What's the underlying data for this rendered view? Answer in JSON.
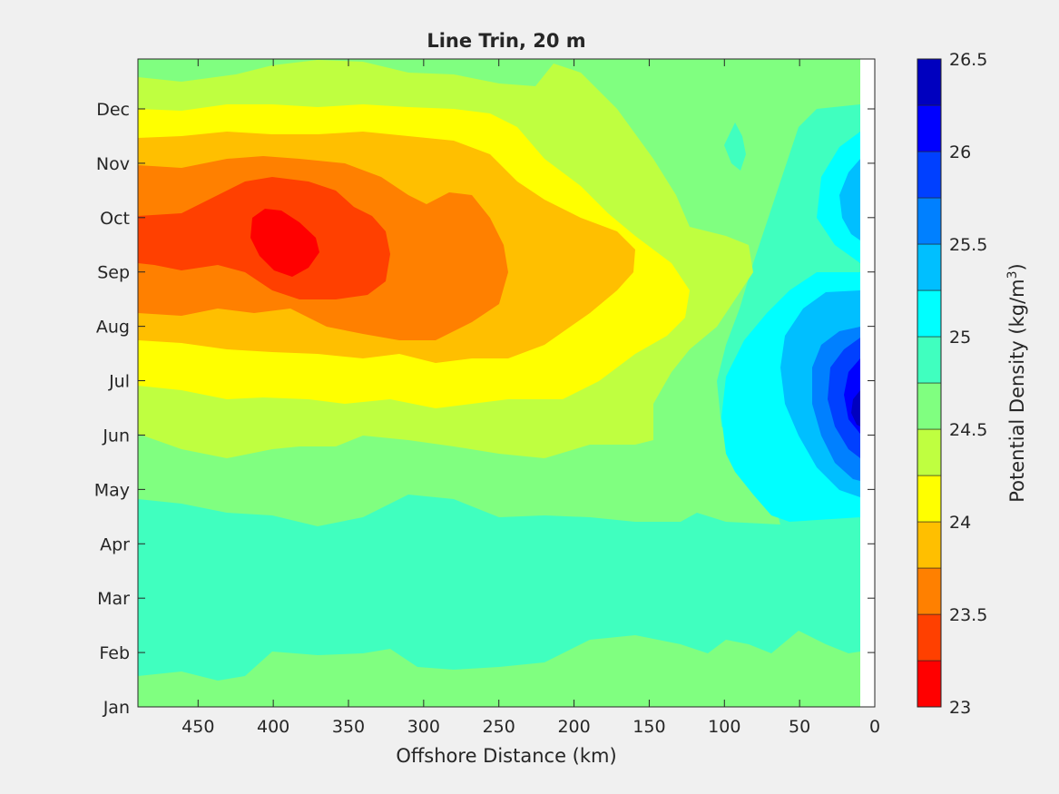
{
  "chart_data": {
    "type": "filled-contour",
    "title": "Line Trin, 20 m",
    "xlabel": "Offshore Distance (km)",
    "xlim": [
      490,
      0
    ],
    "x_reversed": true,
    "x_ticks": [
      450,
      400,
      350,
      300,
      250,
      200,
      150,
      100,
      50,
      0
    ],
    "y_ticks": [
      "Jan",
      "Feb",
      "Mar",
      "Apr",
      "May",
      "Jun",
      "Jul",
      "Aug",
      "Sep",
      "Oct",
      "Nov",
      "Dec"
    ],
    "colorbar": {
      "label_main": "Potential Density (kg/m",
      "label_sup": "3",
      "label_end": ")",
      "range": [
        23,
        26.5
      ],
      "ticks": [
        23,
        23.5,
        24,
        24.5,
        25,
        25.5,
        26,
        26.5
      ],
      "level_step": 0.25,
      "colors": [
        "#ff0000",
        "#ff4000",
        "#ff8000",
        "#ffbf00",
        "#ffff00",
        "#bfff40",
        "#80ff80",
        "#40ffbf",
        "#00ffff",
        "#00bfff",
        "#0080ff",
        "#0040ff",
        "#0000ff",
        "#0000bf"
      ]
    },
    "density_regions": [
      {
        "level": 23.0,
        "feature": "minimum near 395 km, mid-September to early October",
        "value": 23.1
      },
      {
        "level": 26.25,
        "feature": "maximum near coast, mid-June",
        "value": 26.3
      }
    ]
  }
}
